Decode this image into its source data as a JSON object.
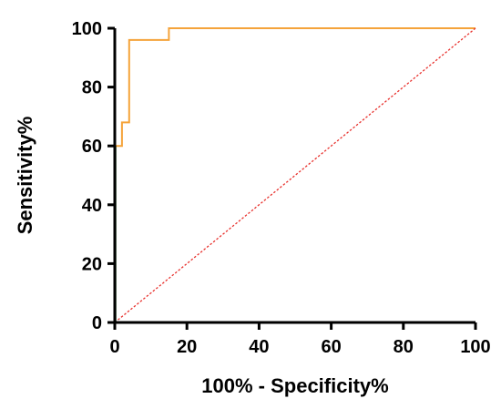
{
  "chart_data": {
    "type": "line",
    "title": "",
    "xlabel": "100% - Specificity%",
    "ylabel": "Sensitivity%",
    "xlim": [
      0,
      100
    ],
    "ylim": [
      0,
      100
    ],
    "x_ticks": [
      "0",
      "20",
      "40",
      "60",
      "80",
      "100"
    ],
    "y_ticks": [
      "0",
      "20",
      "40",
      "60",
      "80",
      "100"
    ],
    "grid": false,
    "legend": "none",
    "series": [
      {
        "style": "step",
        "color": "#f5a33a",
        "x": [
          0,
          0,
          2,
          2,
          4,
          4,
          15,
          15,
          100
        ],
        "y": [
          0,
          60,
          60,
          68,
          68,
          96,
          96,
          100,
          100
        ]
      },
      {
        "style": "dotted",
        "color": "#e8322e",
        "x": [
          0,
          100
        ],
        "y": [
          0,
          100
        ]
      }
    ]
  }
}
